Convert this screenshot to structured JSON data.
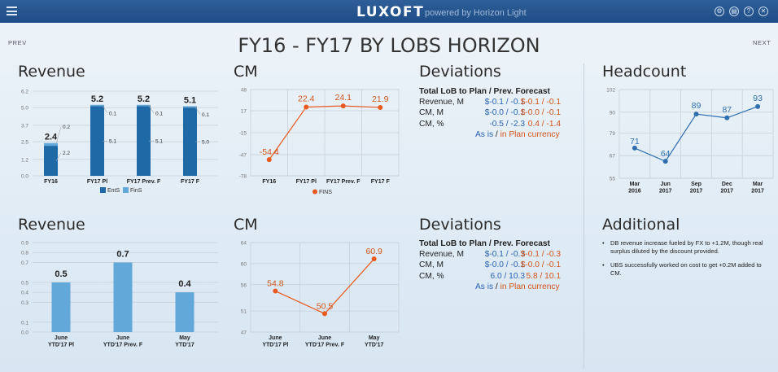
{
  "header": {
    "brand": "LUXOFT",
    "powered_by": "powered by Horizon Light",
    "icons": [
      "menu-icon",
      "settings-icon",
      "print-icon",
      "help-icon",
      "close-icon"
    ]
  },
  "nav": {
    "prev": "PREV",
    "next": "NEXT"
  },
  "page_title": "FY16 - FY17 BY LOBS HORIZON",
  "sections": {
    "revenue_top": "Revenue",
    "cm_top": "CM",
    "deviations_top": "Deviations",
    "headcount": "Headcount",
    "revenue_bottom": "Revenue",
    "cm_bottom": "CM",
    "deviations_bottom": "Deviations",
    "additional": "Additional"
  },
  "deviations_top": {
    "header": "Total LoB to Plan / Prev. Forecast",
    "rows": [
      {
        "label": "Revenue, M",
        "plan": "$-0.1 / -0.1",
        "prev": "$-0.1 / -0.1"
      },
      {
        "label": "CM, M",
        "plan": "$-0.0 / -0.1",
        "prev": "$-0.0 / -0.1"
      },
      {
        "label": "CM, %",
        "plan": "-0.5 / -2.3",
        "prev": "0.4 / -1.4"
      }
    ],
    "footer_left": "As is",
    "footer_sep": " / ",
    "footer_right": "in Plan currency"
  },
  "deviations_bottom": {
    "header": "Total LoB to Plan / Prev. Forecast",
    "rows": [
      {
        "label": "Revenue, M",
        "plan": "$-0.1 / -0.3",
        "prev": "$-0.1 / -0.3"
      },
      {
        "label": "CM, M",
        "plan": "$-0.0 / -0.1",
        "prev": "$-0.0 / -0.1"
      },
      {
        "label": "CM, %",
        "plan": "6.0 / 10.3",
        "prev": "5.8 / 10.1"
      }
    ],
    "footer_left": "As is",
    "footer_sep": " / ",
    "footer_right": "in Plan currency"
  },
  "additional_notes": [
    "DB revenue increase fueled by FX to +1.2M, though real surplus diluted by the discount provided.",
    "UBS successfully worked on cost to get +0.2M added to CM."
  ],
  "colors": {
    "ents_bar": "#1f69a6",
    "fins_bar": "#62a8d8",
    "line_orange": "#e8581f",
    "line_blue": "#2f6fb0",
    "value_blue": "#2a63b5",
    "value_orange": "#d2551c"
  },
  "chart_data": [
    {
      "id": "revenue-top",
      "type": "bar",
      "stacked": true,
      "categories": [
        "FY16",
        "FY17 Pl",
        "FY17 Prev. F",
        "FY17 F"
      ],
      "series": [
        {
          "name": "EntS",
          "values": [
            2.2,
            5.1,
            5.1,
            5.0
          ]
        },
        {
          "name": "FinS",
          "values": [
            0.2,
            0.1,
            0.1,
            0.1
          ]
        }
      ],
      "totals": [
        "2.4",
        "5.2",
        "5.2",
        "5.1"
      ],
      "segment_labels": [
        [
          "2.2",
          "0.2"
        ],
        [
          "5.1",
          "0.1"
        ],
        [
          "5.1",
          "0.1"
        ],
        [
          "5.0",
          "0.1"
        ]
      ],
      "yticks": [
        "0.0",
        "1.2",
        "2.5",
        "3.7",
        "5.0",
        "6.2"
      ],
      "ylim": [
        0,
        6.2
      ],
      "legend": "bottom"
    },
    {
      "id": "cm-top",
      "type": "line",
      "categories": [
        "FY16",
        "FY17 Pl",
        "FY17 Prev. F",
        "FY17 F"
      ],
      "series": [
        {
          "name": "FINS",
          "values": [
            -54.4,
            22.4,
            24.1,
            21.9
          ]
        }
      ],
      "labels": [
        "-54.4",
        "22.4",
        "24.1",
        "21.9"
      ],
      "yticks": [
        "-78",
        "-47",
        "-15",
        "17",
        "48"
      ],
      "ylim": [
        -78,
        48
      ],
      "legend": "bottom"
    },
    {
      "id": "headcount",
      "type": "line",
      "categories": [
        [
          "Mar",
          "2016"
        ],
        [
          "Jun",
          "2017"
        ],
        [
          "Sep",
          "2017"
        ],
        [
          "Dec",
          "2017"
        ],
        [
          "Mar",
          "2017"
        ]
      ],
      "series": [
        {
          "values": [
            71,
            64,
            89,
            87,
            93
          ]
        }
      ],
      "labels": [
        "71",
        "64",
        "89",
        "87",
        "93"
      ],
      "yticks": [
        "55",
        "67",
        "79",
        "90",
        "102"
      ],
      "ylim": [
        55,
        102
      ]
    },
    {
      "id": "revenue-bottom",
      "type": "bar",
      "categories": [
        [
          "June",
          "YTD'17 Pl"
        ],
        [
          "June",
          "YTD'17 Prev. F"
        ],
        [
          "May",
          "YTD'17"
        ]
      ],
      "values": [
        0.5,
        0.7,
        0.4
      ],
      "labels": [
        "0.5",
        "0.7",
        "0.4"
      ],
      "yticks": [
        "0.0",
        "0.1",
        "0.3",
        "0.4",
        "0.5",
        "0.7",
        "0.8",
        "0.9"
      ],
      "ylim": [
        0,
        0.9
      ]
    },
    {
      "id": "cm-bottom",
      "type": "line",
      "categories": [
        [
          "June",
          "YTD'17 Pl"
        ],
        [
          "June",
          "YTD'17 Prev. F"
        ],
        [
          "May",
          "YTD'17"
        ]
      ],
      "series": [
        {
          "values": [
            54.8,
            50.5,
            60.9
          ]
        }
      ],
      "labels": [
        "54.8",
        "50.5",
        "60.9"
      ],
      "yticks": [
        "47",
        "51",
        "56",
        "60",
        "64"
      ],
      "ylim": [
        47,
        64
      ]
    }
  ]
}
